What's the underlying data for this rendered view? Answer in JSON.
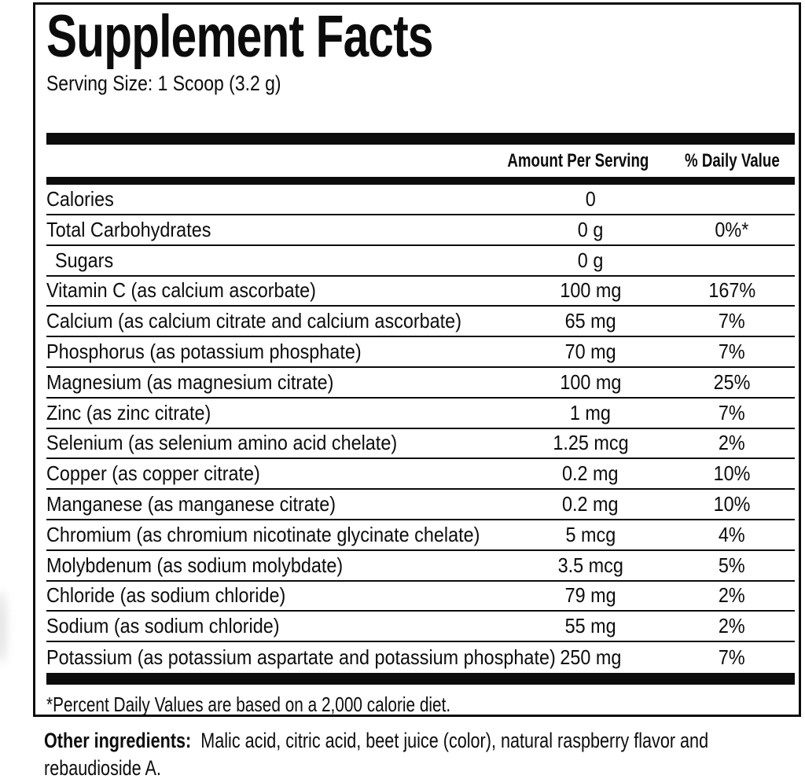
{
  "colors": {
    "ink": "#0c0c0c",
    "background": "#ffffff"
  },
  "panel": {
    "title": "Supplement Facts",
    "serving_size": "Serving Size: 1 Scoop (3.2 g)",
    "header": {
      "amount": "Amount Per Serving",
      "daily_value": "% Daily Value"
    },
    "rows": [
      {
        "name": "Calories",
        "amount": "0",
        "dv": "",
        "indent": false
      },
      {
        "name": "Total Carbohydrates",
        "amount": "0 g",
        "dv": "0%*",
        "indent": false
      },
      {
        "name": "Sugars",
        "amount": "0 g",
        "dv": "",
        "indent": true
      },
      {
        "name": "Vitamin C (as calcium ascorbate)",
        "amount": "100 mg",
        "dv": "167%",
        "indent": false
      },
      {
        "name": "Calcium (as calcium citrate and calcium ascorbate)",
        "amount": "65 mg",
        "dv": "7%",
        "indent": false
      },
      {
        "name": "Phosphorus (as potassium phosphate)",
        "amount": "70 mg",
        "dv": "7%",
        "indent": false
      },
      {
        "name": "Magnesium (as magnesium citrate)",
        "amount": "100 mg",
        "dv": "25%",
        "indent": false
      },
      {
        "name": "Zinc (as zinc citrate)",
        "amount": "1 mg",
        "dv": "7%",
        "indent": false
      },
      {
        "name": "Selenium (as selenium amino acid chelate)",
        "amount": "1.25 mcg",
        "dv": "2%",
        "indent": false
      },
      {
        "name": "Copper (as copper citrate)",
        "amount": "0.2 mg",
        "dv": "10%",
        "indent": false
      },
      {
        "name": "Manganese (as manganese citrate)",
        "amount": "0.2 mg",
        "dv": "10%",
        "indent": false
      },
      {
        "name": "Chromium (as chromium nicotinate glycinate chelate)",
        "amount": "5 mcg",
        "dv": "4%",
        "indent": false
      },
      {
        "name": "Molybdenum (as sodium molybdate)",
        "amount": "3.5 mcg",
        "dv": "5%",
        "indent": false
      },
      {
        "name": "Chloride (as sodium chloride)",
        "amount": "79 mg",
        "dv": "2%",
        "indent": false
      },
      {
        "name": "Sodium (as sodium chloride)",
        "amount": "55 mg",
        "dv": "2%",
        "indent": false
      },
      {
        "name": "Potassium (as potassium aspartate and potassium phosphate)",
        "amount": "250 mg",
        "dv": "7%",
        "indent": false
      }
    ],
    "footnote": "*Percent Daily Values are based on a 2,000 calorie diet."
  },
  "other_ingredients": {
    "label": "Other ingredients:",
    "lines": [
      "Malic acid, citric acid, beet juice (color), natural raspberry flavor and",
      "rebaudioside A."
    ]
  }
}
